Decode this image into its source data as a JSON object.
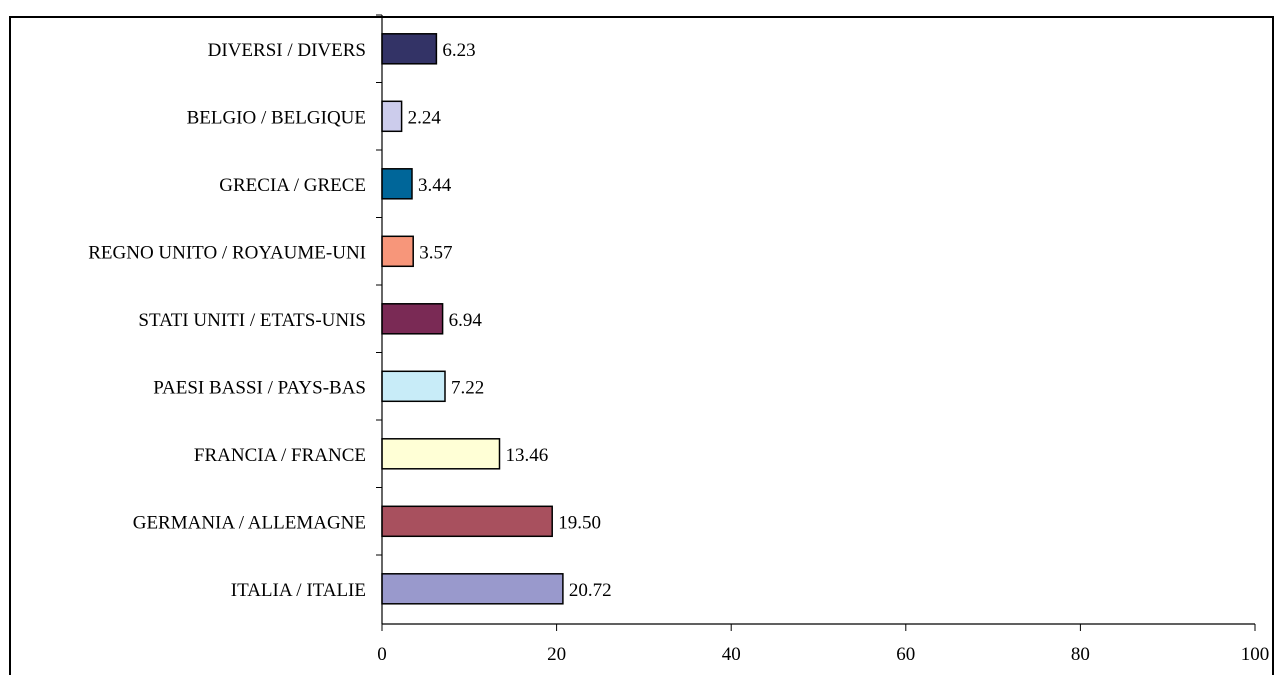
{
  "chart_data": {
    "type": "bar",
    "orientation": "horizontal",
    "title": "",
    "xlabel": "",
    "ylabel": "",
    "xlim": [
      0,
      100
    ],
    "x_ticks": [
      0,
      20,
      40,
      60,
      80,
      100
    ],
    "grid": false,
    "legend": "none",
    "categories": [
      "ITALIA / ITALIE",
      "GERMANIA / ALLEMAGNE",
      "FRANCIA / FRANCE",
      "PAESI BASSI / PAYS-BAS",
      "STATI UNITI / ETATS-UNIS",
      "REGNO UNITO / ROYAUME-UNI",
      "GRECIA / GRECE",
      "BELGIO / BELGIQUE",
      "DIVERSI / DIVERS"
    ],
    "values": [
      20.72,
      19.5,
      13.46,
      7.22,
      6.94,
      3.57,
      3.44,
      2.24,
      6.23
    ],
    "value_labels": [
      "20.72",
      "19.50",
      "13.46",
      "7.22",
      "6.94",
      "3.57",
      "3.44",
      "2.24",
      "6.23"
    ],
    "colors": [
      "#9999cc",
      "#a8505e",
      "#ffffd6",
      "#c8ecf8",
      "#7a2a55",
      "#f7967a",
      "#006699",
      "#ccccec",
      "#333366"
    ]
  }
}
